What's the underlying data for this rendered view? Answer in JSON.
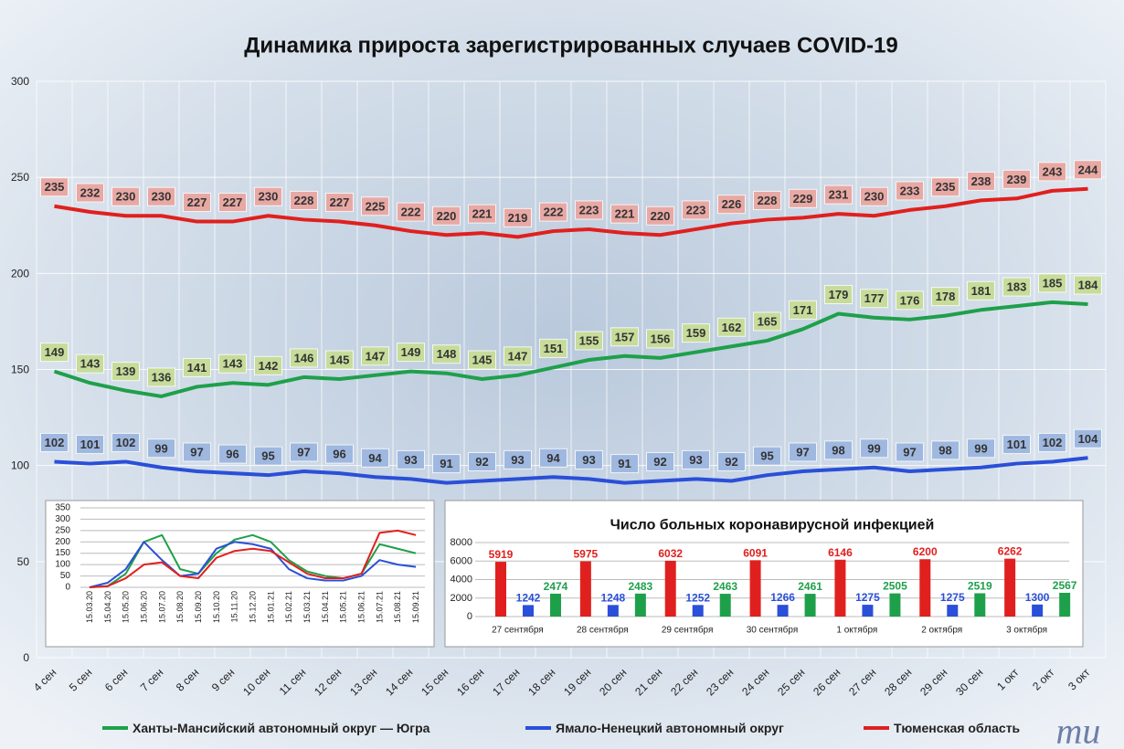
{
  "chart_data": [
    {
      "type": "line",
      "title": "Динамика прироста зарегистрированных случаев COVID-19",
      "categories": [
        "4 сен",
        "5 сен",
        "6 сен",
        "7 сен",
        "8 сен",
        "9 сен",
        "10 сен",
        "11 сен",
        "12 сен",
        "13 сен",
        "14 сен",
        "15 сен",
        "16 сен",
        "17 сен",
        "18 сен",
        "19 сен",
        "20 сен",
        "21 сен",
        "22 сен",
        "23 сен",
        "24 сен",
        "25 сен",
        "26 сен",
        "27 сен",
        "28 сен",
        "29 сен",
        "30 сен",
        "1 окт",
        "2 окт",
        "3 окт"
      ],
      "series": [
        {
          "name": "Ханты-Мансийский автономный округ — Югра",
          "color": "#1ea04a",
          "label_color": "#c7dc9a",
          "values": [
            149,
            143,
            139,
            136,
            141,
            143,
            142,
            146,
            145,
            147,
            149,
            148,
            145,
            147,
            151,
            155,
            157,
            156,
            159,
            162,
            165,
            171,
            179,
            177,
            176,
            178,
            181,
            183,
            185,
            184
          ]
        },
        {
          "name": "Ямало-Ненецкий автономный округ",
          "color": "#2a4fd8",
          "label_color": "#9fb8e0",
          "values": [
            102,
            101,
            102,
            99,
            97,
            96,
            95,
            97,
            96,
            94,
            93,
            91,
            92,
            93,
            94,
            93,
            91,
            92,
            93,
            92,
            95,
            97,
            98,
            99,
            97,
            98,
            99,
            101,
            102,
            104
          ]
        },
        {
          "name": "Тюменская область",
          "color": "#e0201e",
          "label_color": "#e8a8a4",
          "values": [
            235,
            232,
            230,
            230,
            227,
            227,
            230,
            228,
            227,
            225,
            222,
            220,
            221,
            219,
            222,
            223,
            221,
            220,
            223,
            226,
            228,
            229,
            231,
            230,
            233,
            235,
            238,
            239,
            243,
            244
          ]
        }
      ],
      "ylim": [
        0,
        300
      ],
      "yticks": [
        0,
        50,
        100,
        150,
        200,
        250,
        300
      ],
      "grid": true,
      "data_labels": true,
      "legend": "bottom"
    },
    {
      "type": "line",
      "categories": [
        "15.03.20",
        "15.04.20",
        "15.05.20",
        "15.06.20",
        "15.07.20",
        "15.08.20",
        "15.09.20",
        "15.10.20",
        "15.11.20",
        "15.12.20",
        "15.01.21",
        "15.02.21",
        "15.03.21",
        "15.04.21",
        "15.05.21",
        "15.06.21",
        "15.07.21",
        "15.08.21",
        "15.09.21"
      ],
      "series": [
        {
          "color": "#1ea04a",
          "values": [
            0,
            5,
            60,
            200,
            230,
            80,
            60,
            150,
            210,
            230,
            200,
            120,
            70,
            50,
            40,
            60,
            190,
            170,
            150
          ]
        },
        {
          "color": "#2a4fd8",
          "values": [
            0,
            20,
            80,
            200,
            120,
            50,
            60,
            170,
            200,
            190,
            170,
            80,
            40,
            30,
            30,
            50,
            120,
            100,
            90
          ]
        },
        {
          "color": "#e0201e",
          "values": [
            0,
            5,
            40,
            100,
            110,
            50,
            40,
            130,
            160,
            170,
            160,
            110,
            60,
            40,
            40,
            60,
            240,
            250,
            230
          ]
        }
      ],
      "ylim": [
        0,
        350
      ],
      "yticks": [
        0,
        50,
        100,
        150,
        200,
        250,
        300,
        350
      ],
      "grid": true
    },
    {
      "type": "bar",
      "title": "Число больных коронавирусной инфекцией",
      "categories": [
        "27 сентября",
        "28 сентября",
        "29 сентября",
        "30 сентября",
        "1 октября",
        "2 октября",
        "3 октября"
      ],
      "series": [
        {
          "color": "#e0201e",
          "values": [
            5919,
            5975,
            6032,
            6091,
            6146,
            6200,
            6262
          ]
        },
        {
          "color": "#2a4fd8",
          "values": [
            1242,
            1248,
            1252,
            1266,
            1275,
            1275,
            1300
          ]
        },
        {
          "color": "#1ea04a",
          "values": [
            2474,
            2483,
            2463,
            2461,
            2505,
            2519,
            2567
          ]
        }
      ],
      "ylim": [
        0,
        8000
      ],
      "yticks": [
        0,
        2000,
        4000,
        6000,
        8000
      ],
      "grid": true
    }
  ],
  "logo_text": "mu"
}
